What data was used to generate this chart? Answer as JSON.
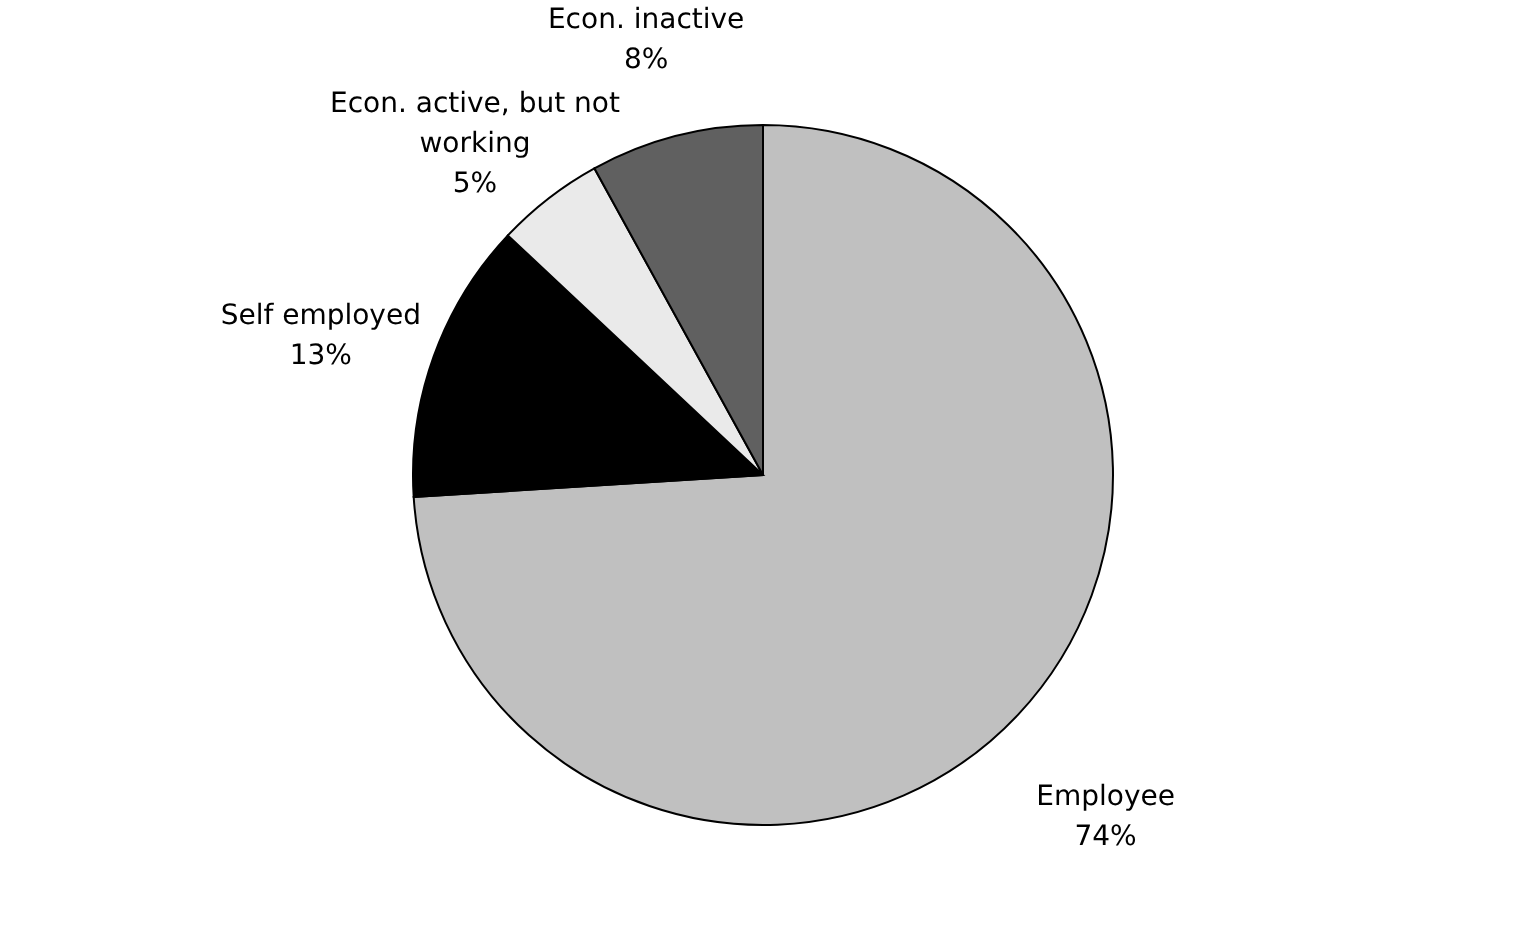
{
  "chart_data": {
    "type": "pie",
    "categories": [
      "Employee",
      "Self employed",
      "Econ. active, but not working",
      "Econ. inactive"
    ],
    "values": [
      74,
      13,
      5,
      8
    ],
    "value_labels": [
      "74%",
      "13%",
      "5%",
      "8%"
    ],
    "colors": [
      "#c0c0c0",
      "#000000",
      "#eaeaea",
      "#606060"
    ],
    "legend": false
  }
}
